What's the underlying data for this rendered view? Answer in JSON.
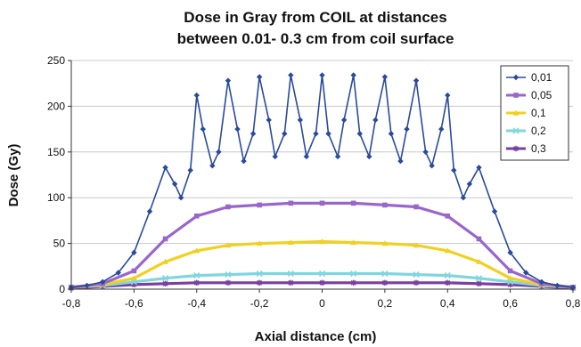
{
  "chart_data": {
    "type": "line",
    "title_line1": "Dose in Gray from COIL at distances",
    "title_line2": "between 0.01- 0.3 cm from coil surface",
    "xlabel": "Axial distance (cm)",
    "ylabel": "Dose (Gy)",
    "xlim": [
      -0.8,
      0.8
    ],
    "ylim": [
      0,
      250
    ],
    "x_ticks": [
      -0.8,
      -0.6,
      -0.4,
      -0.2,
      0,
      0.2,
      0.4,
      0.6,
      0.8
    ],
    "x_tick_labels": [
      "-0,8",
      "-0,6",
      "-0,4",
      "-0,2",
      "0",
      "0,2",
      "0,4",
      "0,6",
      "0,8"
    ],
    "y_ticks": [
      0,
      50,
      100,
      150,
      200,
      250
    ],
    "y_tick_labels": [
      "0",
      "50",
      "100",
      "150",
      "200",
      "250"
    ],
    "grid": true,
    "legend_position": "top-right",
    "series": [
      {
        "name": "0,01",
        "color": "#2a4a9c",
        "marker": "diamond",
        "points": [
          [
            -0.8,
            2
          ],
          [
            -0.75,
            4
          ],
          [
            -0.7,
            8
          ],
          [
            -0.65,
            18
          ],
          [
            -0.6,
            40
          ],
          [
            -0.55,
            85
          ],
          [
            -0.5,
            133
          ],
          [
            -0.47,
            115
          ],
          [
            -0.45,
            100
          ],
          [
            -0.42,
            130
          ],
          [
            -0.4,
            212
          ],
          [
            -0.38,
            175
          ],
          [
            -0.35,
            135
          ],
          [
            -0.33,
            150
          ],
          [
            -0.3,
            228
          ],
          [
            -0.27,
            175
          ],
          [
            -0.25,
            140
          ],
          [
            -0.22,
            170
          ],
          [
            -0.2,
            232
          ],
          [
            -0.17,
            185
          ],
          [
            -0.15,
            145
          ],
          [
            -0.12,
            170
          ],
          [
            -0.1,
            234
          ],
          [
            -0.07,
            185
          ],
          [
            -0.05,
            145
          ],
          [
            -0.02,
            170
          ],
          [
            0,
            234
          ],
          [
            0.02,
            170
          ],
          [
            0.05,
            145
          ],
          [
            0.07,
            185
          ],
          [
            0.1,
            234
          ],
          [
            0.12,
            170
          ],
          [
            0.15,
            145
          ],
          [
            0.17,
            185
          ],
          [
            0.2,
            232
          ],
          [
            0.22,
            170
          ],
          [
            0.25,
            140
          ],
          [
            0.27,
            175
          ],
          [
            0.3,
            228
          ],
          [
            0.33,
            150
          ],
          [
            0.35,
            135
          ],
          [
            0.38,
            175
          ],
          [
            0.4,
            212
          ],
          [
            0.42,
            130
          ],
          [
            0.45,
            100
          ],
          [
            0.47,
            115
          ],
          [
            0.5,
            133
          ],
          [
            0.55,
            85
          ],
          [
            0.6,
            40
          ],
          [
            0.65,
            18
          ],
          [
            0.7,
            8
          ],
          [
            0.75,
            4
          ],
          [
            0.8,
            2
          ]
        ]
      },
      {
        "name": "0,05",
        "color": "#9966cc",
        "marker": "square",
        "points": [
          [
            -0.8,
            2
          ],
          [
            -0.7,
            6
          ],
          [
            -0.6,
            20
          ],
          [
            -0.5,
            55
          ],
          [
            -0.4,
            80
          ],
          [
            -0.3,
            90
          ],
          [
            -0.2,
            92
          ],
          [
            -0.1,
            94
          ],
          [
            0,
            94
          ],
          [
            0.1,
            94
          ],
          [
            0.2,
            92
          ],
          [
            0.3,
            90
          ],
          [
            0.4,
            80
          ],
          [
            0.5,
            55
          ],
          [
            0.6,
            20
          ],
          [
            0.7,
            6
          ],
          [
            0.8,
            2
          ]
        ]
      },
      {
        "name": "0,1",
        "color": "#f0d020",
        "marker": "triangle",
        "points": [
          [
            -0.8,
            2
          ],
          [
            -0.7,
            5
          ],
          [
            -0.6,
            12
          ],
          [
            -0.5,
            30
          ],
          [
            -0.4,
            42
          ],
          [
            -0.3,
            48
          ],
          [
            -0.2,
            50
          ],
          [
            -0.1,
            51
          ],
          [
            0,
            52
          ],
          [
            0.1,
            51
          ],
          [
            0.2,
            50
          ],
          [
            0.3,
            48
          ],
          [
            0.4,
            42
          ],
          [
            0.5,
            30
          ],
          [
            0.6,
            12
          ],
          [
            0.7,
            5
          ],
          [
            0.8,
            2
          ]
        ]
      },
      {
        "name": "0,2",
        "color": "#7fd6df",
        "marker": "x",
        "points": [
          [
            -0.8,
            2
          ],
          [
            -0.7,
            4
          ],
          [
            -0.6,
            8
          ],
          [
            -0.5,
            12
          ],
          [
            -0.4,
            15
          ],
          [
            -0.3,
            16
          ],
          [
            -0.2,
            17
          ],
          [
            -0.1,
            17
          ],
          [
            0,
            17
          ],
          [
            0.1,
            17
          ],
          [
            0.2,
            17
          ],
          [
            0.3,
            16
          ],
          [
            0.4,
            15
          ],
          [
            0.5,
            12
          ],
          [
            0.6,
            8
          ],
          [
            0.7,
            4
          ],
          [
            0.8,
            2
          ]
        ]
      },
      {
        "name": "0,3",
        "color": "#7a3fa0",
        "marker": "star",
        "points": [
          [
            -0.8,
            1
          ],
          [
            -0.7,
            3
          ],
          [
            -0.6,
            5
          ],
          [
            -0.5,
            6
          ],
          [
            -0.4,
            7
          ],
          [
            -0.3,
            7
          ],
          [
            -0.2,
            7
          ],
          [
            -0.1,
            7
          ],
          [
            0,
            7
          ],
          [
            0.1,
            7
          ],
          [
            0.2,
            7
          ],
          [
            0.3,
            7
          ],
          [
            0.4,
            7
          ],
          [
            0.5,
            6
          ],
          [
            0.6,
            5
          ],
          [
            0.7,
            3
          ],
          [
            0.8,
            1
          ]
        ]
      }
    ]
  }
}
